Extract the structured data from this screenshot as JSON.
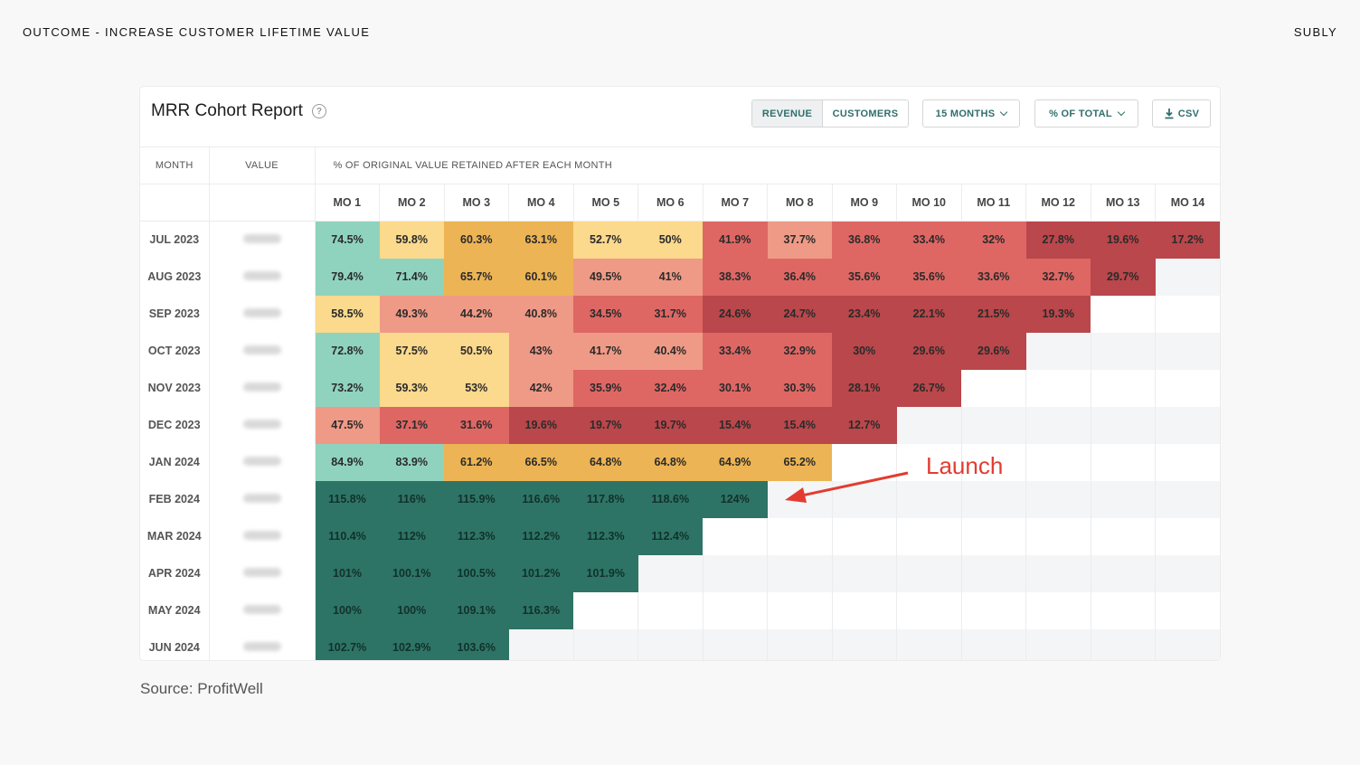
{
  "page": {
    "header_left": "OUTCOME - INCREASE CUSTOMER LIFETIME VALUE",
    "header_right": "SUBLY",
    "source": "Source: ProfitWell",
    "annotation": "Launch"
  },
  "card": {
    "title": "MRR Cohort Report",
    "help": "?",
    "toggle": {
      "revenue": "REVENUE",
      "customers": "CUSTOMERS"
    },
    "months_select": "15 MONTHS",
    "pct_select": "% OF TOTAL",
    "csv": "CSV"
  },
  "table": {
    "col_month": "MONTH",
    "col_value": "VALUE",
    "col_retained": "% OF ORIGINAL VALUE RETAINED AFTER EACH MONTH",
    "months": [
      "MO 1",
      "MO 2",
      "MO 3",
      "MO 4",
      "MO 5",
      "MO 6",
      "MO 7",
      "MO 8",
      "MO 9",
      "MO 10",
      "MO 11",
      "MO 12",
      "MO 13",
      "MO 14"
    ],
    "rows": [
      {
        "month": "JUL 2023",
        "values": [
          "74.5%",
          "59.8%",
          "60.3%",
          "63.1%",
          "52.7%",
          "50%",
          "41.9%",
          "37.7%",
          "36.8%",
          "33.4%",
          "32%",
          "27.8%",
          "19.6%",
          "17.2%"
        ]
      },
      {
        "month": "AUG 2023",
        "values": [
          "79.4%",
          "71.4%",
          "65.7%",
          "60.1%",
          "49.5%",
          "41%",
          "38.3%",
          "36.4%",
          "35.6%",
          "35.6%",
          "33.6%",
          "32.7%",
          "29.7%"
        ]
      },
      {
        "month": "SEP 2023",
        "values": [
          "58.5%",
          "49.3%",
          "44.2%",
          "40.8%",
          "34.5%",
          "31.7%",
          "24.6%",
          "24.7%",
          "23.4%",
          "22.1%",
          "21.5%",
          "19.3%"
        ]
      },
      {
        "month": "OCT 2023",
        "values": [
          "72.8%",
          "57.5%",
          "50.5%",
          "43%",
          "41.7%",
          "40.4%",
          "33.4%",
          "32.9%",
          "30%",
          "29.6%",
          "29.6%"
        ]
      },
      {
        "month": "NOV 2023",
        "values": [
          "73.2%",
          "59.3%",
          "53%",
          "42%",
          "35.9%",
          "32.4%",
          "30.1%",
          "30.3%",
          "28.1%",
          "26.7%"
        ]
      },
      {
        "month": "DEC 2023",
        "values": [
          "47.5%",
          "37.1%",
          "31.6%",
          "19.6%",
          "19.7%",
          "19.7%",
          "15.4%",
          "15.4%",
          "12.7%"
        ]
      },
      {
        "month": "JAN 2024",
        "values": [
          "84.9%",
          "83.9%",
          "61.2%",
          "66.5%",
          "64.8%",
          "64.8%",
          "64.9%",
          "65.2%"
        ]
      },
      {
        "month": "FEB 2024",
        "values": [
          "115.8%",
          "116%",
          "115.9%",
          "116.6%",
          "117.8%",
          "118.6%",
          "124%"
        ]
      },
      {
        "month": "MAR 2024",
        "values": [
          "110.4%",
          "112%",
          "112.3%",
          "112.2%",
          "112.3%",
          "112.4%"
        ]
      },
      {
        "month": "APR 2024",
        "values": [
          "101%",
          "100.1%",
          "100.5%",
          "101.2%",
          "101.9%"
        ]
      },
      {
        "month": "MAY 2024",
        "values": [
          "100%",
          "100%",
          "109.1%",
          "116.3%"
        ]
      },
      {
        "month": "JUN 2024",
        "values": [
          "102.7%",
          "102.9%",
          "103.6%"
        ]
      }
    ]
  },
  "colors": {
    "dark_green": "#2e7466",
    "mint": "#8fd3be",
    "light_yellow": "#fbd98d",
    "amber": "#ecb454",
    "salmon": "#ef9a86",
    "red": "#de6764",
    "dark_red": "#b9474b",
    "annotation": "#e23c30",
    "accent": "#2f6f6b"
  }
}
